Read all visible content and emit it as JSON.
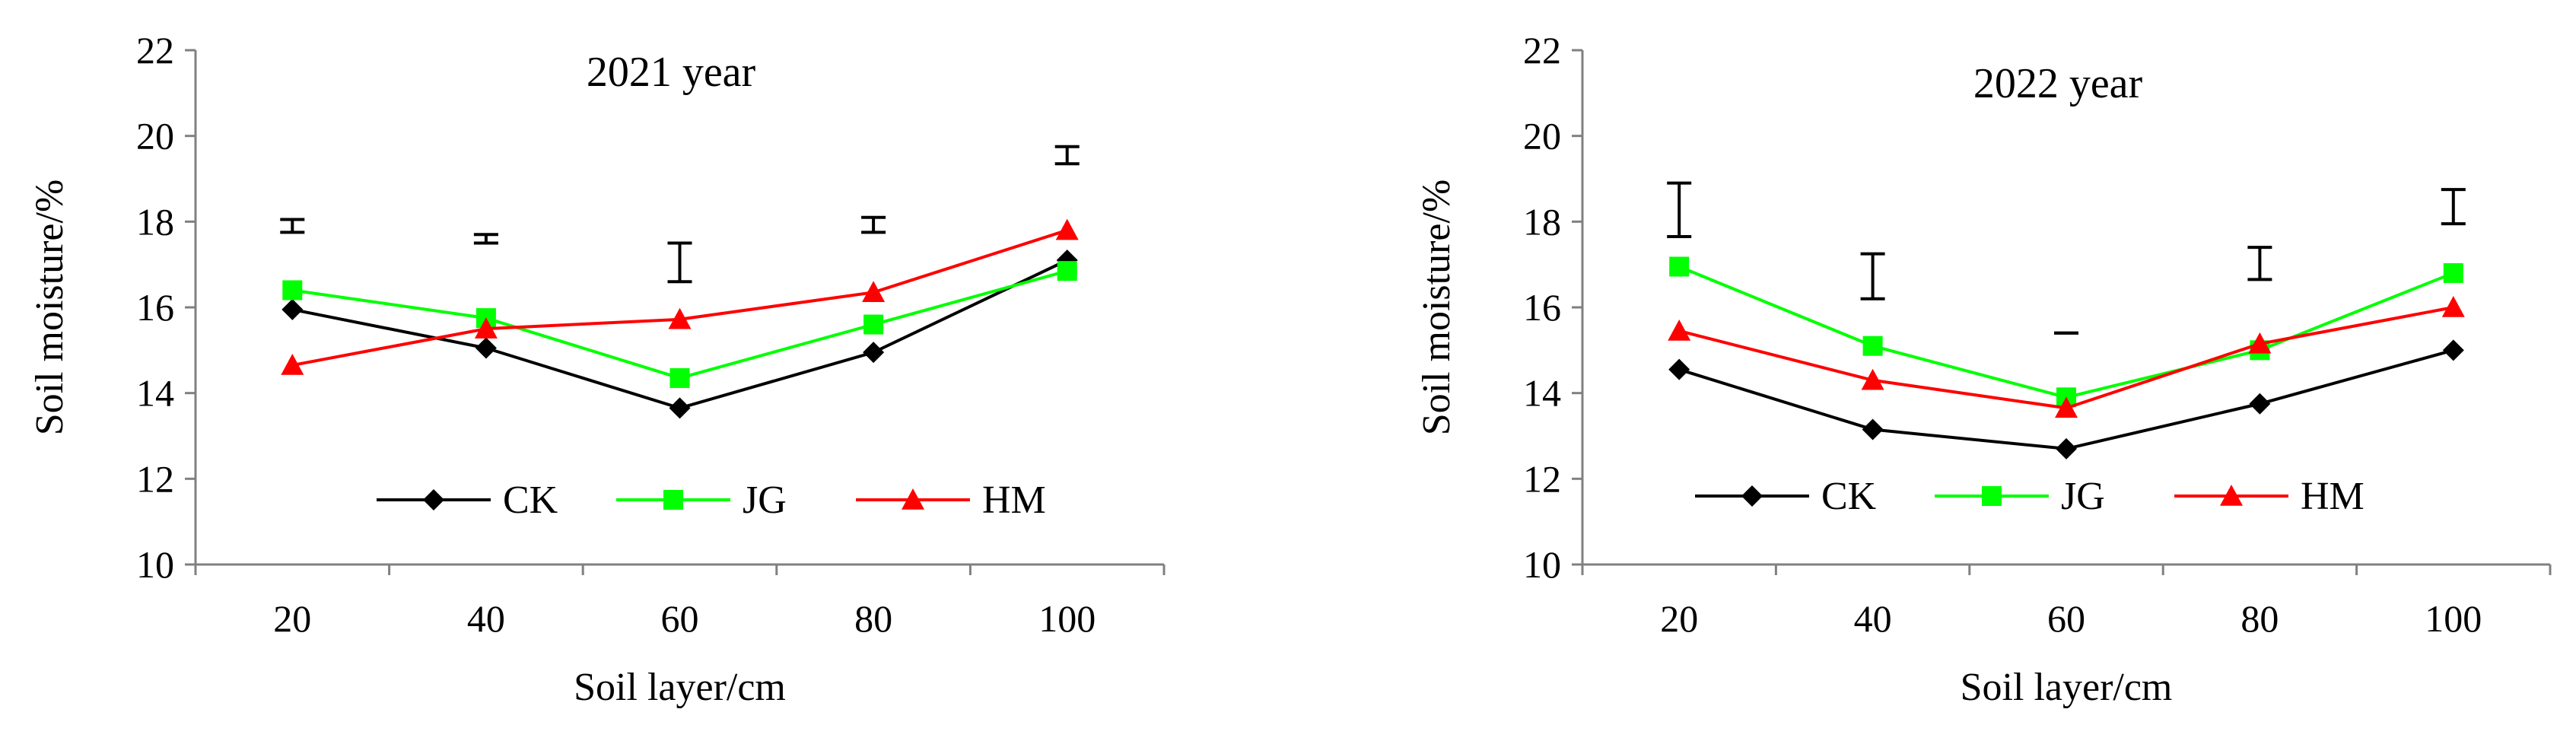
{
  "colors": {
    "CK": "#000000",
    "JG": "#00ff00",
    "HM": "#ff0000",
    "axis": "#808080",
    "errorbar": "#000000"
  },
  "chart_data": [
    {
      "type": "line",
      "title": "2021 year",
      "xlabel": "Soil layer/cm",
      "ylabel": "Soil moisture/%",
      "categories": [
        "20",
        "40",
        "60",
        "80",
        "100"
      ],
      "ylim": [
        10,
        22
      ],
      "yticks": [
        "10",
        "12",
        "14",
        "16",
        "18",
        "20",
        "22"
      ],
      "grid": false,
      "legend_position": "bottom-center inside plot",
      "series": [
        {
          "name": "CK",
          "marker": "diamond",
          "values": [
            15.95,
            15.05,
            13.65,
            14.95,
            17.1
          ]
        },
        {
          "name": "JG",
          "marker": "square",
          "values": [
            16.4,
            15.75,
            14.35,
            15.6,
            16.85
          ]
        },
        {
          "name": "HM",
          "marker": "triangle",
          "values": [
            14.65,
            15.5,
            15.72,
            16.35,
            17.8
          ]
        }
      ],
      "error_bars": [
        {
          "low": 17.75,
          "high": 18.05
        },
        {
          "low": 17.5,
          "high": 17.7
        },
        {
          "low": 16.6,
          "high": 17.5
        },
        {
          "low": 17.75,
          "high": 18.1
        },
        {
          "low": 19.35,
          "high": 19.75
        }
      ]
    },
    {
      "type": "line",
      "title": "2022 year",
      "xlabel": "Soil layer/cm",
      "ylabel": "Soil moisture/%",
      "categories": [
        "20",
        "40",
        "60",
        "80",
        "100"
      ],
      "ylim": [
        10,
        22
      ],
      "yticks": [
        "10",
        "12",
        "14",
        "16",
        "18",
        "20",
        "22"
      ],
      "grid": false,
      "legend_position": "bottom-center inside plot",
      "series": [
        {
          "name": "CK",
          "marker": "diamond",
          "values": [
            14.55,
            13.15,
            12.7,
            13.75,
            15.0
          ]
        },
        {
          "name": "JG",
          "marker": "square",
          "values": [
            16.95,
            15.1,
            13.9,
            15.0,
            16.8
          ]
        },
        {
          "name": "HM",
          "marker": "triangle",
          "values": [
            15.45,
            14.3,
            13.65,
            15.15,
            16.0
          ]
        }
      ],
      "error_bars": [
        {
          "low": 17.65,
          "high": 18.9
        },
        {
          "low": 16.2,
          "high": 17.25
        },
        {
          "low": 15.4,
          "high": 15.4
        },
        {
          "low": 16.65,
          "high": 17.4
        },
        {
          "low": 17.95,
          "high": 18.75
        }
      ]
    }
  ]
}
